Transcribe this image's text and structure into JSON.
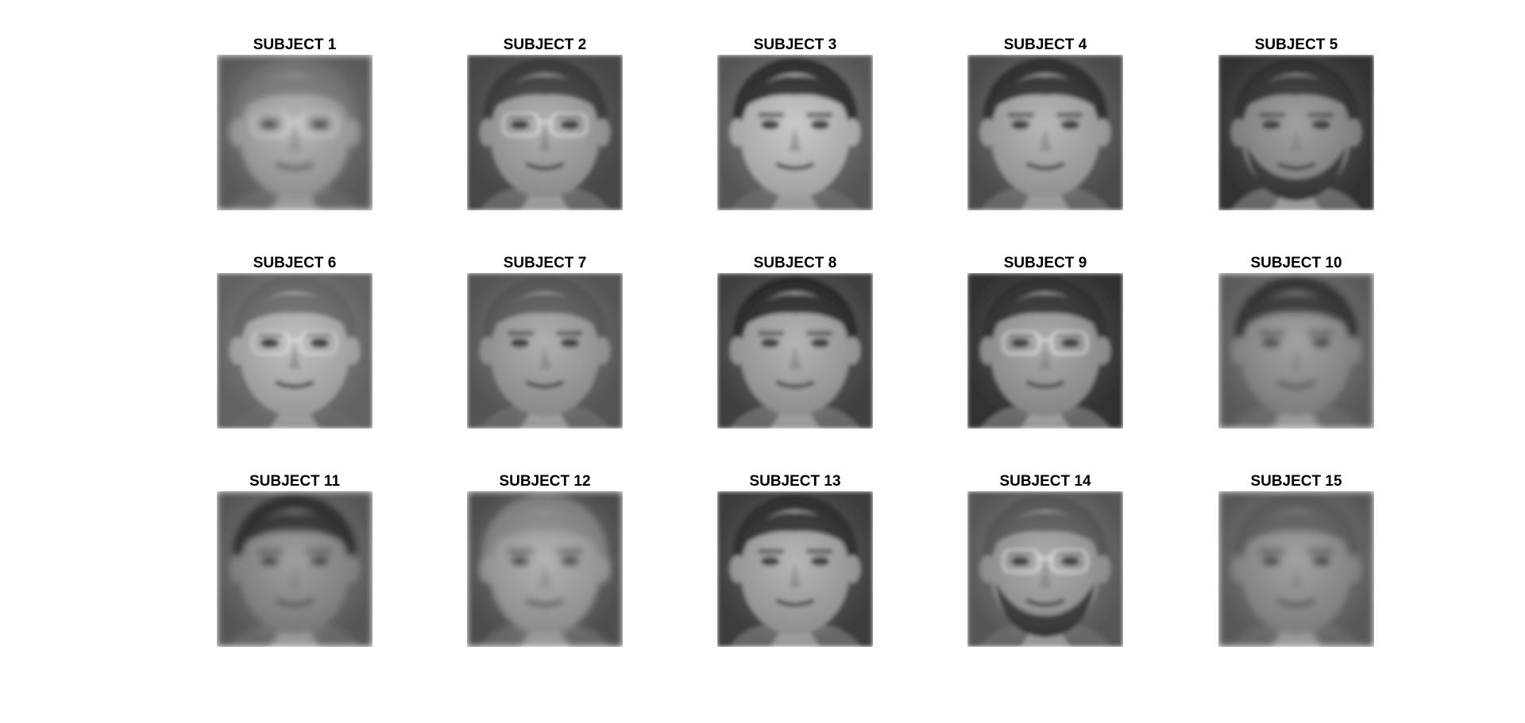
{
  "figure": {
    "background": "#ffffff",
    "subjects": [
      {
        "title": "SUBJECT 1",
        "hair": "#7a7a7a",
        "bg": "#6e6e6e",
        "skin": "#a6a6a6",
        "glasses": true,
        "beard": false,
        "blur": true
      },
      {
        "title": "SUBJECT 2",
        "hair": "#3a3a3a",
        "bg": "#555555",
        "skin": "#a0a0a0",
        "glasses": true,
        "beard": false,
        "blur": false
      },
      {
        "title": "SUBJECT 3",
        "hair": "#2a2a2a",
        "bg": "#6a6a6a",
        "skin": "#bdbdbd",
        "glasses": false,
        "beard": false,
        "blur": false
      },
      {
        "title": "SUBJECT 4",
        "hair": "#2c2c2c",
        "bg": "#5c5c5c",
        "skin": "#a8a8a8",
        "glasses": false,
        "beard": false,
        "blur": false
      },
      {
        "title": "SUBJECT 5",
        "hair": "#2e2e2e",
        "bg": "#3e3e3e",
        "skin": "#8c8c8c",
        "glasses": false,
        "beard": true,
        "blur": false
      },
      {
        "title": "SUBJECT 6",
        "hair": "#6c6c6c",
        "bg": "#777777",
        "skin": "#b2b2b2",
        "glasses": true,
        "beard": false,
        "blur": false
      },
      {
        "title": "SUBJECT 7",
        "hair": "#5a5a5a",
        "bg": "#666666",
        "skin": "#9e9e9e",
        "glasses": false,
        "beard": false,
        "blur": false
      },
      {
        "title": "SUBJECT 8",
        "hair": "#262626",
        "bg": "#4e4e4e",
        "skin": "#a4a4a4",
        "glasses": false,
        "beard": false,
        "blur": false
      },
      {
        "title": "SUBJECT 9",
        "hair": "#2e2e2e",
        "bg": "#3c3c3c",
        "skin": "#9a9a9a",
        "glasses": true,
        "beard": false,
        "blur": false
      },
      {
        "title": "SUBJECT 10",
        "hair": "#303030",
        "bg": "#6e6e6e",
        "skin": "#8e8e8e",
        "glasses": false,
        "beard": false,
        "blur": true
      },
      {
        "title": "SUBJECT 11",
        "hair": "#2a2a2a",
        "bg": "#6a6a6a",
        "skin": "#8a8a8a",
        "glasses": false,
        "beard": false,
        "blur": true
      },
      {
        "title": "SUBJECT 12",
        "hair": "#8c8c8c",
        "bg": "#5e5e5e",
        "skin": "#a2a2a2",
        "glasses": false,
        "beard": false,
        "blur": true
      },
      {
        "title": "SUBJECT 13",
        "hair": "#2c2c2c",
        "bg": "#4a4a4a",
        "skin": "#a6a6a6",
        "glasses": false,
        "beard": false,
        "blur": false
      },
      {
        "title": "SUBJECT 14",
        "hair": "#5a5a5a",
        "bg": "#6a6a6a",
        "skin": "#9c9c9c",
        "glasses": true,
        "beard": true,
        "blur": false
      },
      {
        "title": "SUBJECT 15",
        "hair": "#5e5e5e",
        "bg": "#6c6c6c",
        "skin": "#8e8e8e",
        "glasses": false,
        "beard": false,
        "blur": true
      }
    ]
  }
}
